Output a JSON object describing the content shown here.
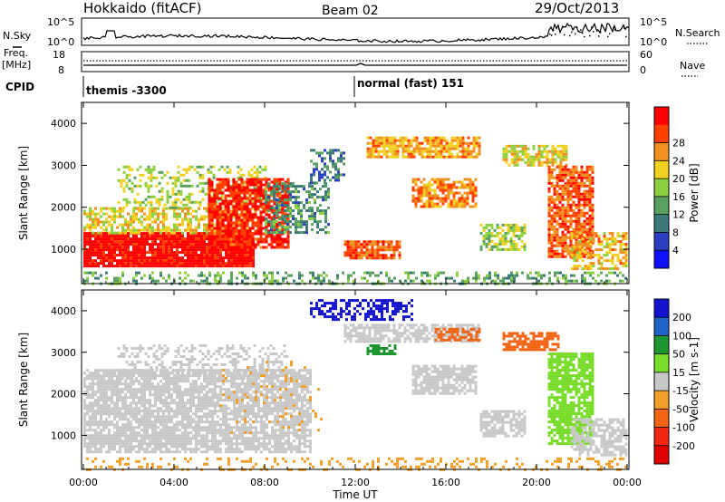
{
  "header": {
    "title": "Hokkaido (fitACF)",
    "beam": "Beam 02",
    "date": "29/Oct/2013"
  },
  "left_labels": {
    "nsky": "N.Sky",
    "freq": "Freq.",
    "freq_unit": "[MHz]",
    "cpid": "CPID"
  },
  "right_labels": {
    "nsearch": "N.Search",
    "nave": "Nave"
  },
  "noise_panel": {
    "left_ticks": [
      "10^5",
      "10^0"
    ],
    "right_ticks": [
      "10^5",
      "10^0"
    ]
  },
  "freq_panel": {
    "left_ticks": [
      "18",
      "8"
    ],
    "right_ticks": [
      "60",
      "0"
    ]
  },
  "cpid_panel": {
    "segments": [
      {
        "label": "themis -3300",
        "start_hour": 0
      },
      {
        "label": "normal (fast) 151",
        "start_hour": 12
      }
    ]
  },
  "time_axis": {
    "label": "Time UT",
    "ticks": [
      "00:00",
      "04:00",
      "08:00",
      "12:00",
      "16:00",
      "20:00",
      "00:00"
    ]
  },
  "chart_data": [
    {
      "type": "heatmap",
      "title": "",
      "xlabel": "Time UT",
      "ylabel": "Slant Range [km]",
      "xlim": [
        0,
        24
      ],
      "ylim": [
        180,
        4500
      ],
      "yticks": [
        "1000",
        "2000",
        "3000",
        "4000"
      ],
      "colorbar": {
        "label": "Power [dB]",
        "ticks": [
          "4",
          "8",
          "12",
          "16",
          "20",
          "24",
          "28"
        ],
        "range": [
          0,
          30
        ],
        "colors": [
          "#1010ff",
          "#2a3fc0",
          "#3c7a7a",
          "#5aa060",
          "#8cd040",
          "#f0d020",
          "#f09020",
          "#ff4000",
          "#ff0000"
        ]
      },
      "regions": [
        {
          "t0": 0.0,
          "t1": 7.5,
          "r0": 600,
          "r1": 1400,
          "level": 29,
          "density": 0.95
        },
        {
          "t0": 0.0,
          "t1": 7.5,
          "r0": 1400,
          "r1": 2000,
          "level": 18,
          "density": 0.6
        },
        {
          "t0": 1.5,
          "t1": 8.0,
          "r0": 2000,
          "r1": 3000,
          "level": 16,
          "density": 0.35
        },
        {
          "t0": 5.5,
          "t1": 9.0,
          "r0": 1000,
          "r1": 2700,
          "level": 27,
          "density": 0.8
        },
        {
          "t0": 8.0,
          "t1": 10.8,
          "r0": 1400,
          "r1": 2600,
          "level": 10,
          "density": 0.5
        },
        {
          "t0": 10.0,
          "t1": 11.5,
          "r0": 2600,
          "r1": 3400,
          "level": 8,
          "density": 0.35
        },
        {
          "t0": 11.5,
          "t1": 14.0,
          "r0": 800,
          "r1": 1200,
          "level": 24,
          "density": 0.85
        },
        {
          "t0": 12.5,
          "t1": 17.5,
          "r0": 3200,
          "r1": 3700,
          "level": 21,
          "density": 0.75
        },
        {
          "t0": 14.5,
          "t1": 17.3,
          "r0": 2000,
          "r1": 2700,
          "level": 22,
          "density": 0.7
        },
        {
          "t0": 17.5,
          "t1": 19.5,
          "r0": 1000,
          "r1": 1600,
          "level": 15,
          "density": 0.7
        },
        {
          "t0": 18.5,
          "t1": 21.3,
          "r0": 3000,
          "r1": 3500,
          "level": 18,
          "density": 0.7
        },
        {
          "t0": 20.5,
          "t1": 22.5,
          "r0": 800,
          "r1": 3000,
          "level": 24,
          "density": 0.8
        },
        {
          "t0": 21.5,
          "t1": 24.0,
          "r0": 500,
          "r1": 1400,
          "level": 20,
          "density": 0.6
        },
        {
          "t0": 0.0,
          "t1": 24.0,
          "r0": 180,
          "r1": 450,
          "level": 12,
          "density": 0.35
        }
      ]
    },
    {
      "type": "heatmap",
      "title": "",
      "xlabel": "Time UT",
      "ylabel": "Slant Range [km]",
      "xlim": [
        0,
        24
      ],
      "ylim": [
        180,
        4500
      ],
      "yticks": [
        "1000",
        "2000",
        "3000",
        "4000"
      ],
      "colorbar": {
        "label": "Velocity [m s-1]",
        "ticks": [
          "200",
          "100",
          "50",
          "15",
          "-15",
          "-50",
          "-100",
          "-200"
        ],
        "range": [
          -250,
          250
        ],
        "colors": [
          "#1414d0",
          "#1e64c8",
          "#1e9632",
          "#78dc28",
          "#c8c8c8",
          "#f0a028",
          "#f06414",
          "#f02814",
          "#e00000"
        ]
      },
      "regions": [
        {
          "t0": 0.0,
          "t1": 10.0,
          "r0": 600,
          "r1": 2600,
          "color": "#c8c8c8",
          "density": 0.8
        },
        {
          "t0": 1.5,
          "t1": 9.0,
          "r0": 2400,
          "r1": 3200,
          "color": "#c8c8c8",
          "density": 0.35
        },
        {
          "t0": 6.0,
          "t1": 10.5,
          "r0": 1000,
          "r1": 2800,
          "color": "#f0a028",
          "density": 0.08
        },
        {
          "t0": 10.0,
          "t1": 14.5,
          "r0": 3800,
          "r1": 4300,
          "color": "#1414d0",
          "density": 0.5
        },
        {
          "t0": 11.5,
          "t1": 17.5,
          "r0": 3300,
          "r1": 3700,
          "color": "#c8c8c8",
          "density": 0.7
        },
        {
          "t0": 12.5,
          "t1": 13.8,
          "r0": 3000,
          "r1": 3200,
          "color": "#1e9632",
          "density": 0.7
        },
        {
          "t0": 15.5,
          "t1": 17.5,
          "r0": 3300,
          "r1": 3600,
          "color": "#f06414",
          "density": 0.6
        },
        {
          "t0": 14.5,
          "t1": 17.3,
          "r0": 2000,
          "r1": 2700,
          "color": "#c8c8c8",
          "density": 0.8
        },
        {
          "t0": 17.5,
          "t1": 19.5,
          "r0": 1000,
          "r1": 1600,
          "color": "#c8c8c8",
          "density": 0.75
        },
        {
          "t0": 18.5,
          "t1": 21.0,
          "r0": 3100,
          "r1": 3500,
          "color": "#f06414",
          "density": 0.7
        },
        {
          "t0": 20.5,
          "t1": 22.5,
          "r0": 800,
          "r1": 3000,
          "color": "#78dc28",
          "density": 0.75
        },
        {
          "t0": 21.5,
          "t1": 24.0,
          "r0": 500,
          "r1": 1400,
          "color": "#c8c8c8",
          "density": 0.6
        },
        {
          "t0": 0.0,
          "t1": 24.0,
          "r0": 180,
          "r1": 450,
          "color": "#f0a028",
          "density": 0.25
        }
      ]
    }
  ]
}
